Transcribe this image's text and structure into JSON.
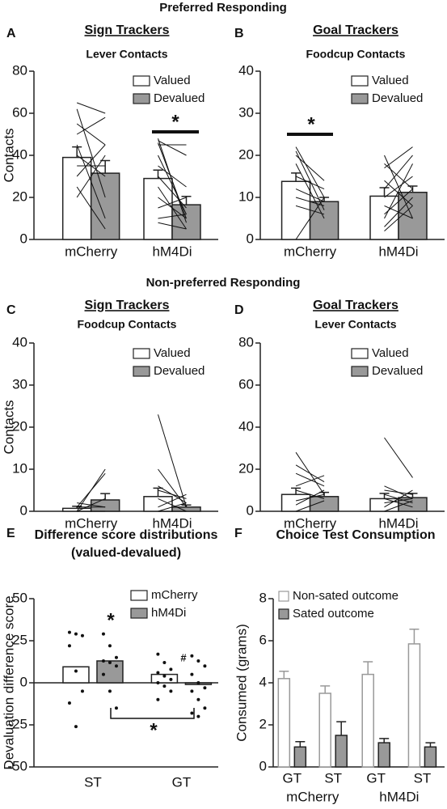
{
  "sections": [
    "Preferred Responding",
    "Non-preferred Responding"
  ],
  "chart_data": [
    {
      "type": "bar",
      "panel": "A",
      "title": "Sign Trackers",
      "subtitle": "Lever Contacts",
      "ylabel": "Contacts",
      "categories": [
        "mCherry",
        "hM4Di"
      ],
      "series": [
        {
          "name": "Valued",
          "color": "#ffffff",
          "values": [
            39,
            29
          ],
          "errors": [
            5,
            4
          ]
        },
        {
          "name": "Devalued",
          "color": "#999999",
          "values": [
            31.5,
            16.5
          ],
          "errors": [
            6,
            4
          ]
        }
      ],
      "subjects": [
        [
          [
            65,
            60
          ],
          [
            62,
            20
          ],
          [
            55,
            45
          ],
          [
            50,
            58
          ],
          [
            45,
            10
          ],
          [
            40,
            30
          ],
          [
            35,
            35
          ],
          [
            30,
            45
          ],
          [
            25,
            5
          ],
          [
            20,
            40
          ]
        ],
        [
          [
            48,
            8
          ],
          [
            47,
            40
          ],
          [
            46,
            10
          ],
          [
            45,
            45
          ],
          [
            40,
            12
          ],
          [
            35,
            25
          ],
          [
            30,
            15
          ],
          [
            25,
            5
          ],
          [
            20,
            10
          ],
          [
            15,
            20
          ],
          [
            10,
            12
          ],
          [
            8,
            5
          ]
        ]
      ],
      "annotations": [
        "*"
      ],
      "ylim": [
        0,
        80
      ],
      "yticks": [
        0,
        20,
        40,
        60,
        80
      ]
    },
    {
      "type": "bar",
      "panel": "B",
      "title": "Goal Trackers",
      "subtitle": "Foodcup Contacts",
      "categories": [
        "mCherry",
        "hM4Di"
      ],
      "series": [
        {
          "name": "Valued",
          "color": "#ffffff",
          "values": [
            13.8,
            10.3
          ],
          "errors": [
            2,
            2
          ]
        },
        {
          "name": "Devalued",
          "color": "#999999",
          "values": [
            9,
            11.2
          ],
          "errors": [
            1,
            1.5
          ]
        }
      ],
      "subjects": [
        [
          [
            22,
            10
          ],
          [
            21,
            7
          ],
          [
            20,
            14
          ],
          [
            18,
            5
          ],
          [
            15,
            12
          ],
          [
            12,
            9
          ],
          [
            10,
            8
          ],
          [
            8,
            6
          ],
          [
            0,
            10
          ]
        ],
        [
          [
            20,
            5
          ],
          [
            18,
            12
          ],
          [
            17,
            22
          ],
          [
            14,
            8
          ],
          [
            12,
            20
          ],
          [
            10,
            15
          ],
          [
            8,
            5
          ],
          [
            6,
            12
          ],
          [
            5,
            18
          ],
          [
            3,
            10
          ],
          [
            2,
            8
          ]
        ]
      ],
      "annotations": [
        "*"
      ],
      "ylim": [
        0,
        40
      ],
      "yticks": [
        0,
        10,
        20,
        30,
        40
      ]
    },
    {
      "type": "bar",
      "panel": "C",
      "title": "Sign Trackers",
      "subtitle": "Foodcup Contacts",
      "ylabel": "Contacts",
      "categories": [
        "mCherry",
        "hM4Di"
      ],
      "series": [
        {
          "name": "Valued",
          "color": "#ffffff",
          "values": [
            0.7,
            3.5
          ],
          "errors": [
            0.5,
            2
          ]
        },
        {
          "name": "Devalued",
          "color": "#999999",
          "values": [
            2.7,
            1
          ],
          "errors": [
            1.5,
            0.5
          ]
        }
      ],
      "subjects": [
        [
          [
            0,
            10
          ],
          [
            1,
            9
          ],
          [
            0,
            3
          ],
          [
            1,
            1
          ],
          [
            0,
            0
          ],
          [
            2,
            1
          ]
        ],
        [
          [
            23,
            1
          ],
          [
            10,
            1
          ],
          [
            6,
            2
          ],
          [
            5,
            3
          ],
          [
            3,
            0
          ],
          [
            1,
            4
          ],
          [
            0,
            2
          ],
          [
            0,
            0
          ]
        ]
      ],
      "ylim": [
        0,
        40
      ],
      "yticks": [
        0,
        10,
        20,
        30,
        40
      ]
    },
    {
      "type": "bar",
      "panel": "D",
      "title": "Goal Trackers",
      "subtitle": "Lever Contacts",
      "categories": [
        "mCherry",
        "hM4Di"
      ],
      "series": [
        {
          "name": "Valued",
          "color": "#ffffff",
          "values": [
            8,
            6
          ],
          "errors": [
            3,
            2.5
          ]
        },
        {
          "name": "Devalued",
          "color": "#999999",
          "values": [
            7,
            6.5
          ],
          "errors": [
            2,
            2
          ]
        }
      ],
      "subjects": [
        [
          [
            28,
            8
          ],
          [
            22,
            14
          ],
          [
            18,
            12
          ],
          [
            12,
            17
          ],
          [
            10,
            6
          ],
          [
            5,
            8
          ],
          [
            3,
            10
          ],
          [
            0,
            5
          ]
        ],
        [
          [
            35,
            16
          ],
          [
            12,
            6
          ],
          [
            10,
            8
          ],
          [
            8,
            4
          ],
          [
            6,
            2
          ],
          [
            4,
            6
          ],
          [
            2,
            10
          ],
          [
            0,
            5
          ]
        ]
      ],
      "ylim": [
        0,
        80
      ],
      "yticks": [
        0,
        20,
        40,
        60,
        80
      ]
    },
    {
      "type": "bar",
      "panel": "E",
      "title": "Difference score distributions",
      "subtitle": "(valued-devalued)",
      "ylabel": "Devaluation difference score",
      "categories": [
        "ST",
        "GT"
      ],
      "series": [
        {
          "name": "mCherry",
          "color": "#ffffff",
          "values": [
            9.5,
            5
          ],
          "points": [
            [
              30,
              29,
              28,
              22,
              7,
              -5,
              -12,
              -26
            ],
            [
              17,
              12,
              8,
              6,
              4,
              2,
              0,
              -2,
              -5,
              -10
            ]
          ]
        },
        {
          "name": "hM4Di",
          "color": "#999999",
          "values": [
            13,
            -1
          ],
          "points": [
            [
              29,
              22,
              15,
              13,
              12,
              10,
              5,
              -5,
              -15
            ],
            [
              16,
              13,
              10,
              5,
              0,
              -3,
              -5,
              -10,
              -15,
              -18,
              -20
            ]
          ]
        }
      ],
      "annotations": [
        "*",
        "#",
        "*"
      ],
      "ylim": [
        -50,
        50
      ],
      "yticks": [
        -50,
        -25,
        0,
        25,
        50
      ]
    },
    {
      "type": "bar",
      "panel": "F",
      "title": "Choice Test Consumption",
      "ylabel": "Consumed (grams)",
      "categories": [
        "GT",
        "ST",
        "GT",
        "ST"
      ],
      "groups": [
        "mCherry",
        "hM4Di"
      ],
      "series": [
        {
          "name": "Non-sated outcome",
          "color": "#ffffff",
          "values": [
            4.2,
            3.5,
            4.4,
            5.85
          ],
          "errors": [
            0.35,
            0.35,
            0.6,
            0.7
          ]
        },
        {
          "name": "Sated outcome",
          "color": "#999999",
          "values": [
            0.95,
            1.5,
            1.15,
            0.95
          ],
          "errors": [
            0.25,
            0.65,
            0.2,
            0.2
          ]
        }
      ],
      "ylim": [
        0,
        8
      ],
      "yticks": [
        0,
        2,
        4,
        6,
        8
      ]
    }
  ]
}
